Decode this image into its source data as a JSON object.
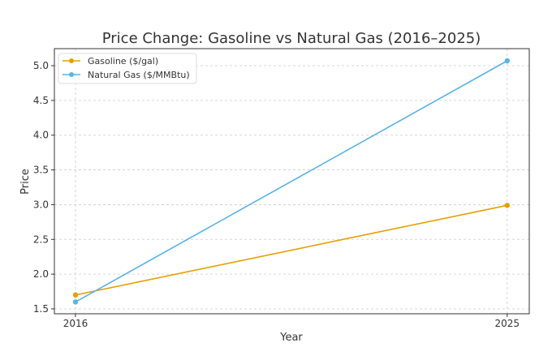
{
  "chart_data": {
    "type": "line",
    "title": "Price Change: Gasoline vs Natural Gas (2016–2025)",
    "xlabel": "Year",
    "ylabel": "Price",
    "x": [
      2016,
      2025
    ],
    "xticks": [
      "2016",
      "2025"
    ],
    "yticks": [
      "1.5",
      "2.0",
      "2.5",
      "3.0",
      "3.5",
      "4.0",
      "4.5",
      "5.0"
    ],
    "xlim": [
      2015.56,
      2025.46
    ],
    "ylim": [
      1.43,
      5.245
    ],
    "grid": true,
    "legend_placement": "top-left",
    "series": [
      {
        "name": "Gasoline ($/gal)",
        "values": [
          1.7,
          2.99
        ],
        "color": "#E69F00"
      },
      {
        "name": "Natural Gas ($/MMBtu)",
        "values": [
          1.6,
          5.07
        ],
        "color": "#56B4E9"
      }
    ]
  }
}
